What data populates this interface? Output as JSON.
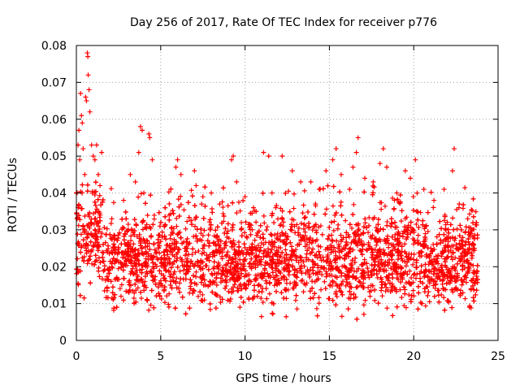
{
  "chart_data": {
    "type": "scatter",
    "title": "Day 256 of 2017, Rate Of TEC Index for receiver p776",
    "xlabel": "GPS time / hours",
    "ylabel": "ROTI / TECUs",
    "xlim": [
      0,
      25
    ],
    "ylim": [
      0,
      0.08
    ],
    "xticks": [
      "0",
      "5",
      "10",
      "15",
      "20",
      "25"
    ],
    "yticks": [
      "0",
      "0.01",
      "0.02",
      "0.03",
      "0.04",
      "0.05",
      "0.06",
      "0.07",
      "0.08"
    ],
    "grid": true,
    "marker": "plus",
    "color": "#ff0000",
    "series": [
      {
        "name": "ROTI",
        "points": [
          [
            0.1,
            0.053
          ],
          [
            0.15,
            0.057
          ],
          [
            0.2,
            0.049
          ],
          [
            0.25,
            0.067
          ],
          [
            0.3,
            0.061
          ],
          [
            0.35,
            0.059
          ],
          [
            0.4,
            0.052
          ],
          [
            0.5,
            0.045
          ],
          [
            0.55,
            0.066
          ],
          [
            0.6,
            0.065
          ],
          [
            0.65,
            0.078
          ],
          [
            0.68,
            0.077
          ],
          [
            0.7,
            0.072
          ],
          [
            0.75,
            0.068
          ],
          [
            0.8,
            0.062
          ],
          [
            0.9,
            0.053
          ],
          [
            1.0,
            0.05
          ],
          [
            1.1,
            0.049
          ],
          [
            1.2,
            0.053
          ],
          [
            1.5,
            0.051
          ],
          [
            1.3,
            0.045
          ],
          [
            1.4,
            0.042
          ],
          [
            2.1,
            0.033
          ],
          [
            2.8,
            0.038
          ],
          [
            3.2,
            0.045
          ],
          [
            3.5,
            0.043
          ],
          [
            3.7,
            0.051
          ],
          [
            3.8,
            0.058
          ],
          [
            3.9,
            0.057
          ],
          [
            4.0,
            0.04
          ],
          [
            4.3,
            0.056
          ],
          [
            4.35,
            0.055
          ],
          [
            4.5,
            0.049
          ],
          [
            5.5,
            0.034
          ],
          [
            5.9,
            0.047
          ],
          [
            6.0,
            0.049
          ],
          [
            6.2,
            0.045
          ],
          [
            7.0,
            0.046
          ],
          [
            7.1,
            0.042
          ],
          [
            7.5,
            0.039
          ],
          [
            8.0,
            0.04
          ],
          [
            8.5,
            0.037
          ],
          [
            9.2,
            0.049
          ],
          [
            9.3,
            0.05
          ],
          [
            9.5,
            0.043
          ],
          [
            10.0,
            0.039
          ],
          [
            10.5,
            0.036
          ],
          [
            11.1,
            0.051
          ],
          [
            11.4,
            0.05
          ],
          [
            11.6,
            0.04
          ],
          [
            12.2,
            0.05
          ],
          [
            12.8,
            0.046
          ],
          [
            13.3,
            0.043
          ],
          [
            13.9,
            0.043
          ],
          [
            14.4,
            0.041
          ],
          [
            14.8,
            0.046
          ],
          [
            15.2,
            0.049
          ],
          [
            15.4,
            0.052
          ],
          [
            15.7,
            0.045
          ],
          [
            16.2,
            0.041
          ],
          [
            16.4,
            0.047
          ],
          [
            16.6,
            0.051
          ],
          [
            16.7,
            0.055
          ],
          [
            17.1,
            0.044
          ],
          [
            17.6,
            0.043
          ],
          [
            18.0,
            0.048
          ],
          [
            18.2,
            0.052
          ],
          [
            18.4,
            0.047
          ],
          [
            19.0,
            0.04
          ],
          [
            19.5,
            0.046
          ],
          [
            19.8,
            0.044
          ],
          [
            20.1,
            0.049
          ],
          [
            20.6,
            0.041
          ],
          [
            21.2,
            0.038
          ],
          [
            21.8,
            0.041
          ],
          [
            22.3,
            0.046
          ],
          [
            22.4,
            0.052
          ],
          [
            22.7,
            0.037
          ],
          [
            23.2,
            0.033
          ],
          [
            23.6,
            0.025
          ]
        ],
        "density_envelope": {
          "x_range": [
            0,
            23.8
          ],
          "typical_min": 0.004,
          "typical_max": 0.035
        }
      }
    ]
  }
}
